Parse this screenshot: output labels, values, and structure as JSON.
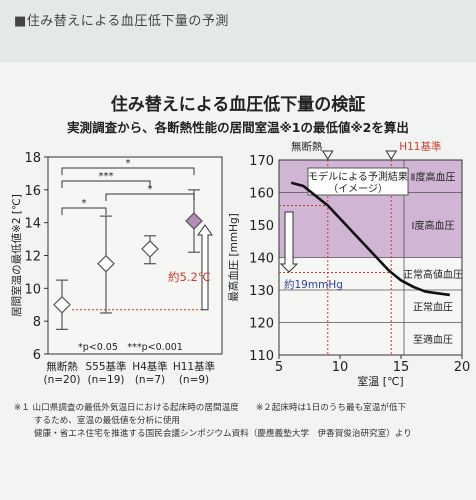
{
  "header": {
    "title": "■住み替えによる血圧低下量の予測"
  },
  "slide": {
    "title": "住み替えによる血圧低下量の検証",
    "subtitle": "実測調査から、各断熱性能の居間室温※1の最低値※2を算出"
  },
  "chart_data": [
    {
      "type": "box",
      "ylabel": "居間室温の最低値※2 [℃]",
      "ylim": [
        6,
        18
      ],
      "yticks": [
        6,
        8,
        10,
        12,
        14,
        16,
        18
      ],
      "categories": [
        "無断熱",
        "S55基準",
        "H4基準",
        "H11基準"
      ],
      "sample_sizes": [
        "(n=20)",
        "(n=19)",
        "(n=7)",
        "(n=9)"
      ],
      "mean": [
        9.0,
        11.5,
        12.4,
        14.1
      ],
      "whisker_low": [
        7.5,
        8.5,
        11.5,
        12.2
      ],
      "whisker_high": [
        10.5,
        14.4,
        13.2,
        16.0
      ],
      "highlight_category": "H11基準",
      "highlight_color": "#b48ab8",
      "significance": [
        {
          "from": "無断熱",
          "to": "H11基準",
          "label": "*"
        },
        {
          "from": "無断熱",
          "to": "H4基準",
          "label": "***"
        },
        {
          "from": "S55基準",
          "to": "H11基準",
          "label": "*"
        },
        {
          "from": "無断熱",
          "to": "S55基準",
          "label": "*"
        }
      ],
      "annotation": "約5.2℃",
      "legend_note": "*p<0.05　***p<0.001"
    },
    {
      "type": "line",
      "ylabel": "最高血圧 [mmHg]",
      "xlabel": "室温 [℃]",
      "xlim": [
        5,
        20
      ],
      "ylim": [
        110,
        170
      ],
      "xticks": [
        5,
        10,
        15,
        20
      ],
      "yticks": [
        110,
        120,
        130,
        140,
        150,
        160,
        170
      ],
      "series": [
        {
          "name": "モデルによる予測結果（イメージ）",
          "x": [
            6.0,
            7.0,
            8.0,
            9.0,
            10.0,
            11.0,
            12.0,
            13.0,
            14.0,
            15.0,
            16.0,
            17.0,
            18.0,
            19.0
          ],
          "y": [
            163,
            162,
            159,
            156,
            152,
            148,
            144,
            140,
            136,
            133,
            131,
            129.5,
            129,
            128.5
          ]
        }
      ],
      "bands": [
        {
          "label": "Ⅱ度高血圧",
          "from": 160,
          "to": 170
        },
        {
          "label": "Ⅰ度高血圧",
          "from": 140,
          "to": 160
        },
        {
          "label": "正常高値血圧",
          "from": 130,
          "to": 140
        },
        {
          "label": "正常血圧",
          "from": 120,
          "to": 130
        },
        {
          "label": "至適血圧",
          "from": 110,
          "to": 120
        }
      ],
      "band_color": "#c9a9cf",
      "markers": [
        {
          "label": "無断熱",
          "x": 9.0,
          "color": "#222222"
        },
        {
          "label": "H11基準",
          "x": 14.2,
          "color": "#d03a2a"
        }
      ],
      "annotation": "約19mmHg"
    }
  ],
  "footnotes": [
    "※１ 山口県調査の最低外気温日における起床時の居間温度　　※２起床時は1日のうち最も室温が低下",
    "　　 するため、室温の最低値を分析に使用",
    "　　 健康・省エネ住宅を推進する国民会議シンポジウム資料（慶應義塾大学　伊香賀俊治研究室）より"
  ]
}
